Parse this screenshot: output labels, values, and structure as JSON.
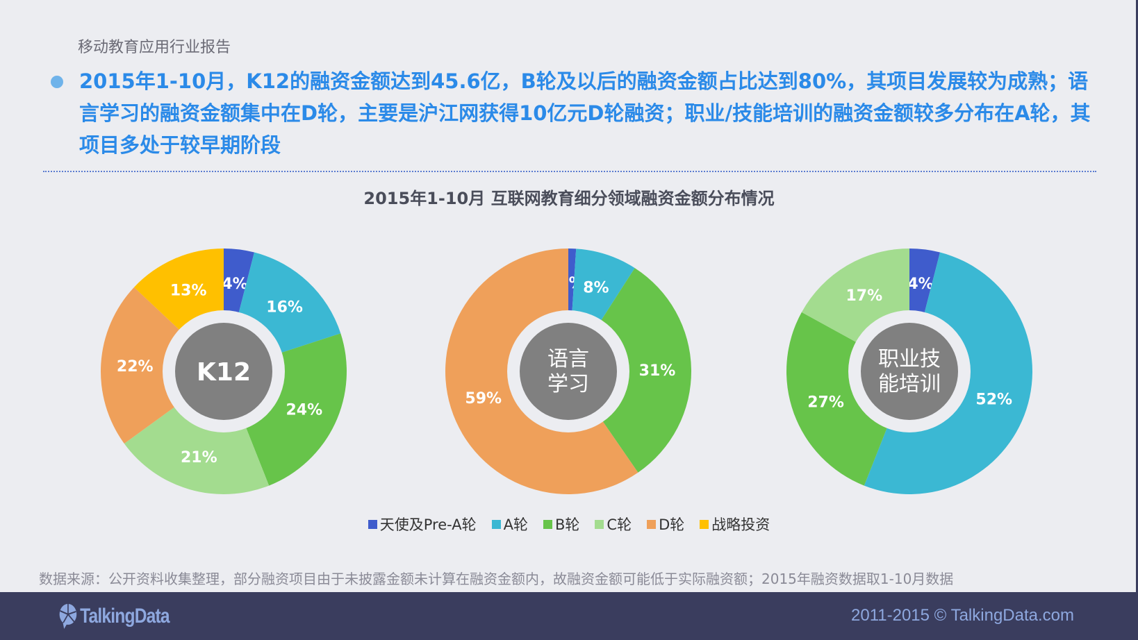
{
  "header": {
    "report_title": "移动教育应用行业报告",
    "summary": "2015年1-10月，K12的融资金额达到45.6亿，B轮及以后的融资金额占比达到80%，其项目发展较为成熟；语言学习的融资金额集中在D轮，主要是沪江网获得10亿元D轮融资；职业/技能培训的融资金额较多分布在A轮，其项目多处于较早期阶段"
  },
  "chart_data": {
    "type": "pie",
    "title": "2015年1-10月  互联网教育细分领域融资金额分布情况",
    "categories": [
      "天使及Pre-A轮",
      "A轮",
      "B轮",
      "C轮",
      "D轮",
      "战略投资"
    ],
    "colors": [
      "#3f5ccc",
      "#3bb8d3",
      "#67c44a",
      "#a3dc8f",
      "#efa05a",
      "#ffc000"
    ],
    "legend_position": "bottom",
    "charts": [
      {
        "name": "K12",
        "values": [
          4,
          16,
          24,
          21,
          22,
          13
        ],
        "labels": [
          "4%",
          "16%",
          "24%",
          "21%",
          "22%",
          "13%"
        ]
      },
      {
        "name": "语言\n学习",
        "values": [
          1,
          8,
          31,
          0,
          59,
          0
        ],
        "labels": [
          "1%",
          "8%",
          "31%",
          "",
          "59%",
          ""
        ]
      },
      {
        "name": "职业技\n能培训",
        "values": [
          4,
          52,
          27,
          17,
          0,
          0
        ],
        "labels": [
          "4%",
          "52%",
          "27%",
          "17%",
          "",
          ""
        ]
      }
    ]
  },
  "source_note": "数据来源：公开资料收集整理，部分融资项目由于未披露金额未计算在融资金额内，故融资金额可能低于实际融资额；2015年融资数据取1-10月数据",
  "footer": {
    "logo_text": "TalkingData",
    "copyright": "2011-2015 © TalkingData.com"
  }
}
